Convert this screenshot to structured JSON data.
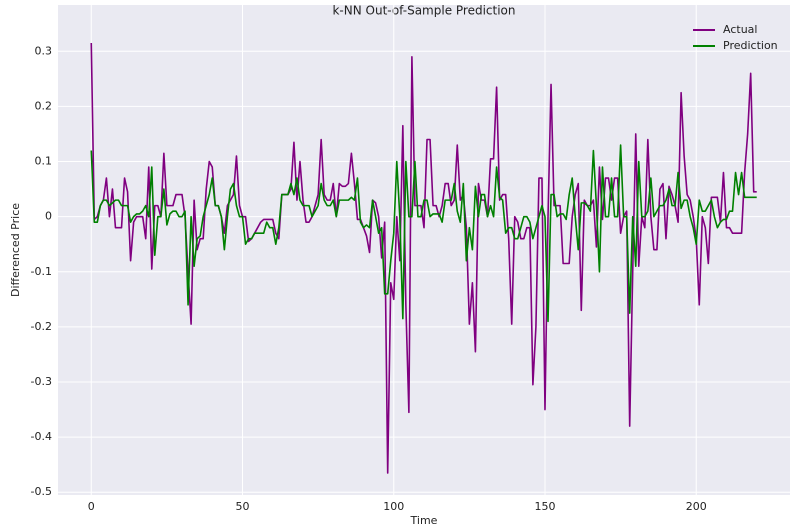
{
  "chart_data": {
    "type": "line",
    "title": "k-NN Out-of-Sample Prediction",
    "xlabel": "Time",
    "ylabel": "Differenced Price",
    "xlim": [
      -11,
      231
    ],
    "xticks": [
      0,
      50,
      100,
      150,
      200
    ],
    "ylim": [
      -0.505,
      0.384
    ],
    "yticks": [
      -0.5,
      -0.4,
      -0.3,
      -0.2,
      -0.1,
      0.0,
      0.1,
      0.2,
      0.3
    ],
    "grid": true,
    "legend": "upper right",
    "series": [
      {
        "name": "Actual",
        "color": "#800080",
        "values": [
          0.315,
          -0.005,
          0.0,
          0.02,
          0.03,
          0.07,
          0.0,
          0.05,
          -0.02,
          -0.02,
          -0.02,
          0.07,
          0.045,
          -0.08,
          -0.01,
          0.0,
          0.0,
          0.0,
          -0.04,
          0.09,
          -0.095,
          0.02,
          0.02,
          0.0,
          0.115,
          0.02,
          0.02,
          0.02,
          0.04,
          0.04,
          0.04,
          0.0,
          -0.1,
          -0.195,
          0.03,
          -0.06,
          -0.04,
          -0.04,
          0.05,
          0.1,
          0.09,
          0.02,
          0.02,
          0.0,
          -0.03,
          0.02,
          0.03,
          0.04,
          0.11,
          0.02,
          0.0,
          0.0,
          -0.045,
          -0.04,
          -0.03,
          -0.02,
          -0.01,
          -0.005,
          -0.005,
          -0.005,
          -0.005,
          -0.03,
          -0.04,
          0.04,
          0.04,
          0.04,
          0.05,
          0.135,
          0.03,
          0.1,
          0.03,
          -0.01,
          -0.01,
          0.0,
          0.02,
          0.04,
          0.14,
          0.04,
          0.03,
          0.03,
          0.06,
          0.0,
          0.06,
          0.055,
          0.055,
          0.06,
          0.115,
          0.06,
          -0.005,
          -0.005,
          -0.02,
          -0.035,
          -0.065,
          0.03,
          0.025,
          0.0,
          -0.075,
          -0.01,
          -0.465,
          -0.12,
          -0.15,
          0.0,
          -0.08,
          0.165,
          -0.16,
          -0.355,
          0.29,
          0.02,
          0.02,
          0.02,
          -0.02,
          0.14,
          0.14,
          0.02,
          0.02,
          0.0,
          0.02,
          0.06,
          0.06,
          0.02,
          0.03,
          0.13,
          0.03,
          0.04,
          -0.02,
          -0.195,
          -0.12,
          -0.245,
          0.06,
          0.03,
          0.03,
          0.0,
          0.105,
          0.105,
          0.235,
          0.03,
          0.04,
          0.04,
          -0.04,
          -0.195,
          0.0,
          -0.01,
          -0.04,
          -0.04,
          -0.02,
          -0.02,
          -0.305,
          -0.2,
          0.07,
          0.07,
          -0.35,
          0.0,
          0.24,
          0.02,
          0.02,
          0.02,
          -0.085,
          -0.085,
          -0.085,
          0.0,
          0.04,
          0.06,
          -0.17,
          0.03,
          0.02,
          0.02,
          0.03,
          -0.055,
          0.09,
          -0.005,
          0.07,
          0.07,
          0.03,
          0.07,
          0.07,
          -0.03,
          0.0,
          0.01,
          -0.38,
          -0.1,
          0.15,
          -0.09,
          0.0,
          -0.02,
          0.14,
          0.0,
          -0.06,
          -0.06,
          0.05,
          0.06,
          -0.04,
          0.055,
          0.04,
          0.02,
          -0.01,
          0.225,
          0.11,
          0.04,
          0.03,
          0.0,
          -0.04,
          -0.16,
          0.0,
          -0.02,
          -0.085,
          0.035,
          0.035,
          0.035,
          -0.01,
          0.08,
          -0.02,
          -0.02,
          -0.03,
          -0.03,
          -0.03,
          -0.03,
          0.08,
          0.15,
          0.26,
          0.045,
          0.045
        ]
      },
      {
        "name": "Prediction",
        "color": "#008000",
        "values": [
          0.12,
          -0.01,
          -0.01,
          0.02,
          0.03,
          0.03,
          0.02,
          0.025,
          0.03,
          0.03,
          0.02,
          0.02,
          0.02,
          -0.01,
          0.0,
          0.005,
          0.005,
          0.01,
          0.02,
          0.0,
          0.09,
          -0.07,
          0.0,
          0.0,
          0.05,
          -0.015,
          0.005,
          0.01,
          0.01,
          0.0,
          0.0,
          0.01,
          -0.16,
          0.0,
          -0.09,
          -0.04,
          -0.035,
          0.0,
          0.02,
          0.04,
          0.07,
          0.02,
          0.02,
          0.0,
          -0.06,
          0.0,
          0.05,
          0.06,
          0.02,
          0.0,
          0.0,
          -0.05,
          -0.04,
          -0.04,
          -0.03,
          -0.03,
          -0.03,
          -0.03,
          -0.01,
          -0.02,
          -0.02,
          -0.05,
          -0.02,
          0.04,
          0.04,
          0.04,
          0.06,
          0.04,
          0.07,
          0.03,
          0.02,
          0.02,
          0.02,
          0.0,
          0.01,
          0.02,
          0.06,
          0.03,
          0.02,
          0.02,
          0.03,
          0.0,
          0.03,
          0.03,
          0.03,
          0.03,
          0.035,
          0.03,
          0.07,
          -0.01,
          -0.02,
          -0.015,
          -0.02,
          0.03,
          0.0,
          -0.03,
          -0.02,
          -0.14,
          -0.14,
          -0.08,
          -0.03,
          0.1,
          0.0,
          -0.185,
          0.1,
          0.0,
          0.0,
          0.1,
          0.0,
          0.0,
          0.03,
          0.03,
          0.0,
          0.005,
          0.005,
          0.005,
          -0.01,
          0.03,
          0.03,
          0.03,
          0.06,
          0.01,
          -0.01,
          0.06,
          -0.08,
          -0.02,
          -0.06,
          0.055,
          0.0,
          0.04,
          0.04,
          0.0,
          0.02,
          0.0,
          0.09,
          0.035,
          0.03,
          -0.03,
          -0.02,
          -0.02,
          -0.04,
          -0.04,
          -0.02,
          0.0,
          0.0,
          -0.01,
          -0.04,
          -0.02,
          0.0,
          0.02,
          0.0,
          -0.19,
          0.04,
          0.04,
          0.0,
          0.005,
          0.005,
          -0.005,
          0.04,
          0.07,
          0.0,
          -0.06,
          0.025,
          0.025,
          0.02,
          0.01,
          0.12,
          0.02,
          -0.1,
          0.09,
          0.0,
          0.0,
          0.07,
          0.0,
          0.0,
          0.13,
          0.0,
          0.0,
          -0.175,
          0.0,
          -0.09,
          0.1,
          0.0,
          0.0,
          0.01,
          0.07,
          0.0,
          0.01,
          0.02,
          0.02,
          0.03,
          0.05,
          0.02,
          0.02,
          0.08,
          0.015,
          0.03,
          0.03,
          0.0,
          -0.02,
          -0.05,
          0.03,
          0.01,
          0.01,
          0.02,
          0.03,
          0.0,
          -0.02,
          -0.01,
          -0.005,
          -0.005,
          0.01,
          0.01,
          0.08,
          0.04,
          0.08,
          0.035,
          0.035,
          0.035,
          0.035,
          0.035
        ]
      }
    ]
  }
}
